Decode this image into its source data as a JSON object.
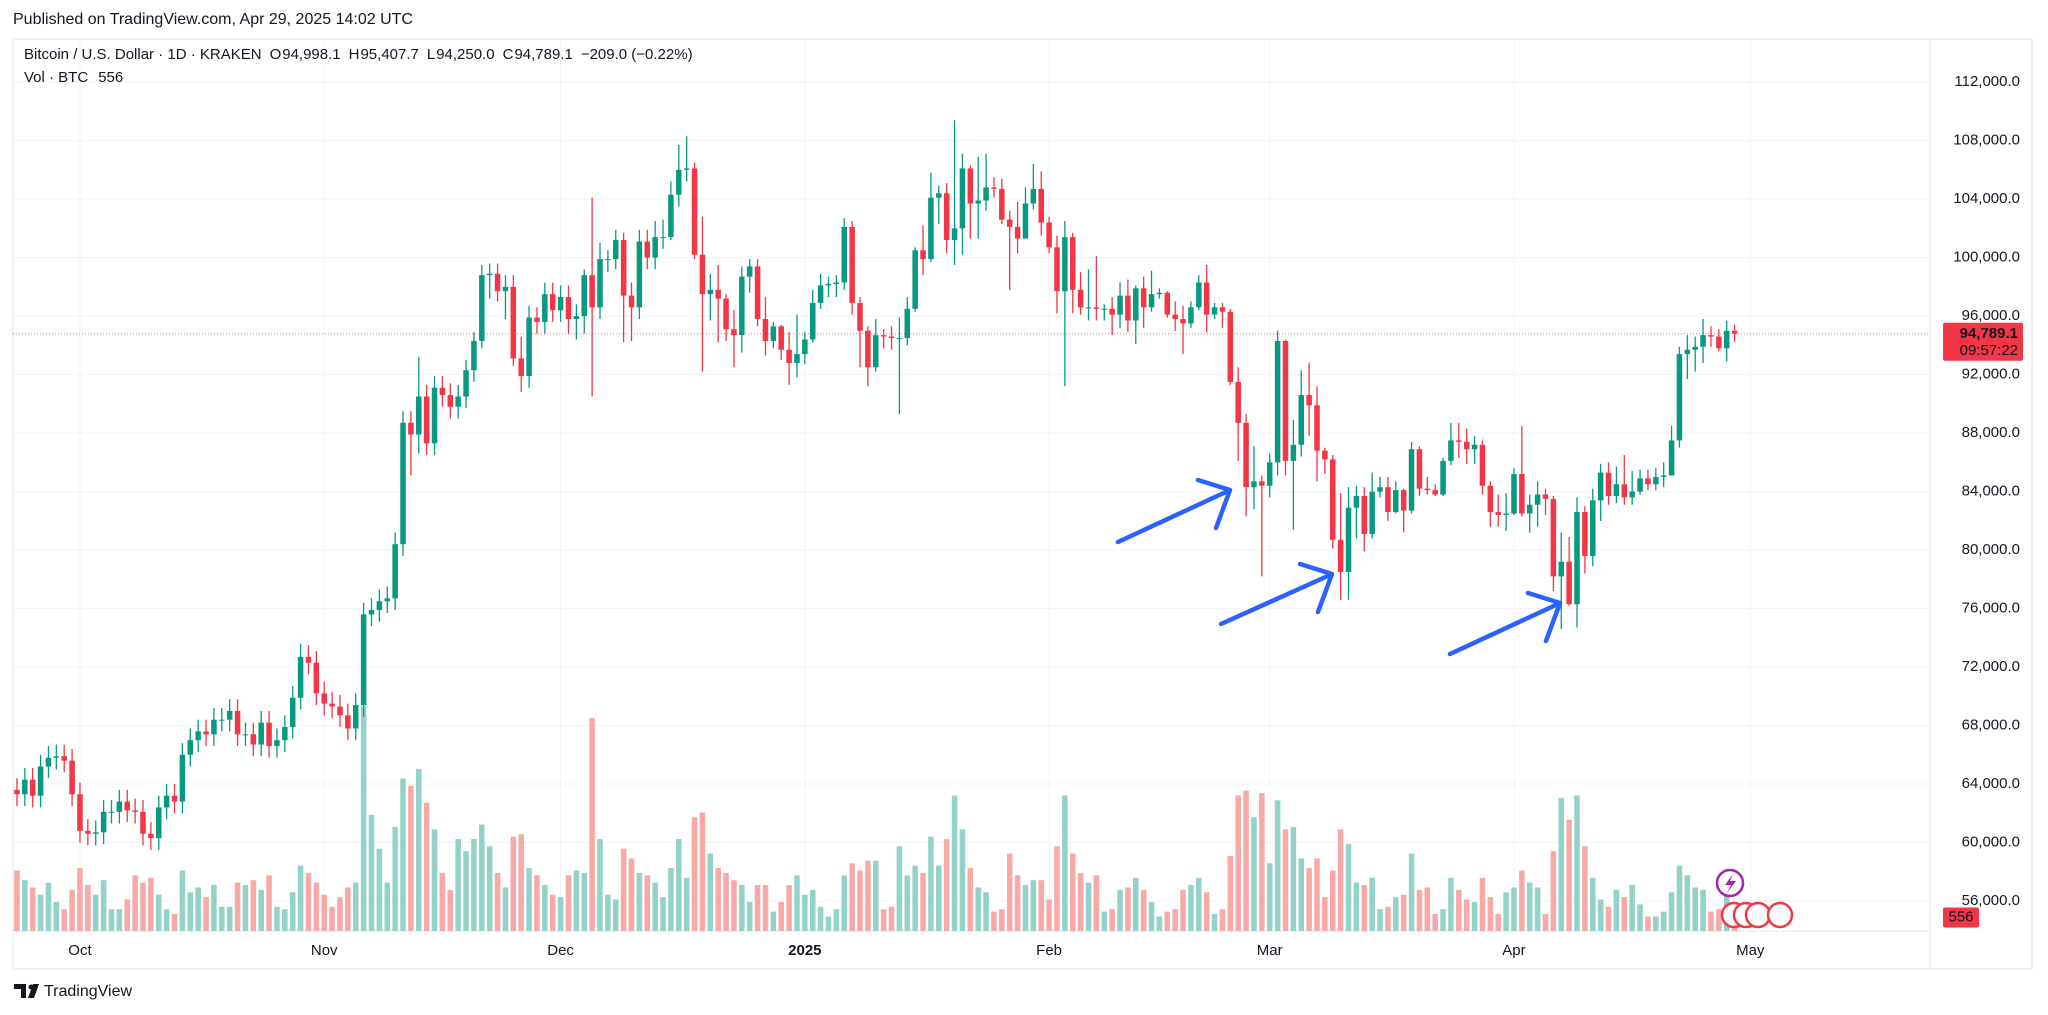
{
  "header": {
    "published": "Published on TradingView.com, Apr 29, 2025 14:02 UTC",
    "brand": "TradingView"
  },
  "chart_data": {
    "type": "candlestick",
    "symbol": "Bitcoin / U.S. Dollar · 1D · KRAKEN",
    "legend_values": [
      {
        "key": "O",
        "label": "94,998.1"
      },
      {
        "key": "H",
        "label": "95,407.7"
      },
      {
        "key": "L",
        "label": "94,250.0"
      },
      {
        "key": "C",
        "label": "94,789.1"
      }
    ],
    "change_label": "−209.0 (−0.22%)",
    "volume_title": "Vol · BTC",
    "volume_label": "556",
    "last_price_label": "94,789.1",
    "countdown": "09:57:22",
    "up_color": "#089981",
    "down_color": "#f23645",
    "up_volume_color": "#92d2c7",
    "down_volume_color": "#f7a9a7",
    "grid": true,
    "xlim": [
      -0.5,
      242.8
    ],
    "xticks": [
      {
        "value": 8,
        "label": "Oct"
      },
      {
        "value": 39,
        "label": "Nov"
      },
      {
        "value": 69,
        "label": "Dec"
      },
      {
        "value": 100,
        "label": "2025"
      },
      {
        "value": 131,
        "label": "Feb"
      },
      {
        "value": 159,
        "label": "Mar"
      },
      {
        "value": 190,
        "label": "Apr"
      },
      {
        "value": 220,
        "label": "May"
      }
    ],
    "ylim": [
      53950,
      114950
    ],
    "yticks": [
      {
        "value": 56000,
        "label": "56,000.0"
      },
      {
        "value": 60000,
        "label": "60,000.0"
      },
      {
        "value": 64000,
        "label": "64,000.0"
      },
      {
        "value": 68000,
        "label": "68,000.0"
      },
      {
        "value": 72000,
        "label": "72,000.0"
      },
      {
        "value": 76000,
        "label": "76,000.0"
      },
      {
        "value": 80000,
        "label": "80,000.0"
      },
      {
        "value": 84000,
        "label": "84,000.0"
      },
      {
        "value": 88000,
        "label": "88,000.0"
      },
      {
        "value": 92000,
        "label": "92,000.0"
      },
      {
        "value": 96000,
        "label": "96,000.0"
      },
      {
        "value": 100000,
        "label": "100,000.0"
      },
      {
        "value": 104000,
        "label": "104,000.0"
      },
      {
        "value": 108000,
        "label": "108,000.0"
      },
      {
        "value": 112000,
        "label": "112,000.0"
      }
    ],
    "open": [
      63600,
      63300,
      64300,
      63200,
      65200,
      65800,
      65900,
      65600,
      63300,
      60800,
      60600,
      60700,
      62100,
      62100,
      62800,
      62200,
      62100,
      60600,
      60300,
      62400,
      63200,
      62800,
      66000,
      67000,
      67600,
      67400,
      68400,
      68400,
      69000,
      67400,
      67400,
      66700,
      68200,
      66600,
      67000,
      67900,
      69900,
      72700,
      72300,
      70200,
      69500,
      69300,
      68700,
      67800,
      69400,
      75600,
      75900,
      76500,
      76700,
      80400,
      88700,
      87900,
      90500,
      87300,
      91100,
      90600,
      89800,
      90500,
      92300,
      94300,
      98800,
      98900,
      97700,
      98000,
      93100,
      91900,
      95900,
      95600,
      97500,
      96400,
      97300,
      95800,
      96000,
      98800,
      96600,
      99900,
      99900,
      101200,
      97400,
      96600,
      101100,
      100000,
      101400,
      101400,
      104300,
      106000,
      106100,
      100200,
      97500,
      97800,
      97200,
      95100,
      94700,
      98700,
      99400,
      95800,
      94300,
      95300,
      93700,
      92800,
      93400,
      94400,
      96900,
      98100,
      98200,
      98300,
      102100,
      96900,
      95000,
      92500,
      94700,
      94600,
      94500,
      94500,
      96500,
      100500,
      99900,
      104100,
      104400,
      101200,
      102000,
      106100,
      103700,
      103900,
      104800,
      104700,
      102600,
      102100,
      101300,
      103700,
      104700,
      102400,
      100700,
      97700,
      101400,
      97800,
      96600,
      96600,
      96500,
      96500,
      96100,
      97400,
      95700,
      97900,
      96600,
      97500,
      97600,
      96100,
      95800,
      95500,
      96600,
      98300,
      96100,
      96600,
      96300,
      91500,
      88700,
      84300,
      84700,
      84400,
      86000,
      94300,
      86100,
      87200,
      90600,
      89900,
      86800,
      86200,
      80700,
      78500,
      82900,
      83700,
      81100,
      84000,
      84300,
      82600,
      84100,
      82700,
      86900,
      84200,
      84100,
      83800,
      86100,
      87500,
      87400,
      86900,
      87200,
      84400,
      82600,
      82400,
      82500,
      85200,
      82500,
      83100,
      83800,
      83500,
      78200,
      79200,
      76300,
      82600,
      79600,
      83400,
      85300,
      83700,
      84500,
      83600,
      84000,
      84900,
      84500,
      85000,
      85100,
      87500,
      93400,
      93700,
      93900,
      94700,
      94600,
      93800,
      94998.1
    ],
    "high": [
      64400,
      65100,
      65100,
      66000,
      66600,
      66700,
      66700,
      66400,
      64100,
      61600,
      61500,
      62900,
      62900,
      63600,
      63600,
      63000,
      62900,
      61400,
      63200,
      64000,
      64000,
      66800,
      67800,
      68400,
      68400,
      69200,
      69200,
      69800,
      69800,
      68200,
      68200,
      69000,
      69000,
      67800,
      68700,
      70700,
      73600,
      73500,
      73100,
      71000,
      70300,
      70100,
      69500,
      70200,
      76400,
      76700,
      77300,
      77500,
      81200,
      89500,
      89500,
      93200,
      91300,
      91900,
      91900,
      91400,
      91300,
      93000,
      94900,
      99500,
      99600,
      99600,
      98800,
      98800,
      94600,
      96700,
      96600,
      98300,
      98300,
      98100,
      98100,
      96800,
      99200,
      104100,
      101000,
      100500,
      101900,
      101700,
      98300,
      101900,
      101900,
      102500,
      102600,
      105200,
      107700,
      108300,
      106500,
      102800,
      98900,
      99500,
      97500,
      96400,
      99400,
      99900,
      99900,
      97300,
      95600,
      95400,
      94900,
      96100,
      94900,
      97800,
      98900,
      98700,
      98800,
      102700,
      102500,
      97300,
      95300,
      95800,
      95100,
      95300,
      95900,
      97300,
      100700,
      102200,
      105800,
      104900,
      105100,
      109400,
      107100,
      106300,
      106900,
      107100,
      105500,
      105400,
      103200,
      103800,
      104800,
      106400,
      105900,
      102800,
      101500,
      102500,
      101700,
      99000,
      99200,
      100100,
      96800,
      97300,
      98300,
      98500,
      98100,
      98700,
      99100,
      97900,
      97700,
      97000,
      96700,
      97000,
      98800,
      99500,
      96900,
      96900,
      96500,
      92500,
      89300,
      87100,
      85100,
      86600,
      95000,
      94400,
      88900,
      92300,
      92800,
      91200,
      87000,
      86500,
      83900,
      84300,
      84400,
      84300,
      85300,
      85000,
      85000,
      84700,
      84200,
      87400,
      87100,
      85000,
      84500,
      86300,
      88700,
      88700,
      88300,
      87800,
      87500,
      84700,
      83800,
      83900,
      85600,
      88500,
      83800,
      84700,
      84200,
      83700,
      81200,
      80900,
      83600,
      83000,
      84200,
      85900,
      86000,
      85700,
      86500,
      85400,
      85500,
      85500,
      85600,
      86000,
      88500,
      93900,
      94700,
      94600,
      95800,
      95300,
      95100,
      95700,
      95407.7
    ],
    "low": [
      62500,
      62500,
      62400,
      62400,
      64400,
      65000,
      64800,
      62500,
      60000,
      59800,
      59800,
      59900,
      61300,
      61300,
      61400,
      61300,
      59800,
      59500,
      59500,
      61600,
      62000,
      62000,
      65200,
      66200,
      66600,
      66600,
      67600,
      67600,
      66600,
      66600,
      65900,
      65900,
      65800,
      65800,
      66200,
      67100,
      69100,
      71500,
      69400,
      68700,
      68500,
      67900,
      67000,
      67000,
      68600,
      74800,
      75100,
      75700,
      75900,
      79600,
      85100,
      86600,
      86500,
      86500,
      89800,
      89000,
      89000,
      89700,
      91500,
      93800,
      97200,
      97000,
      95800,
      92600,
      90800,
      91100,
      94800,
      94800,
      95600,
      95600,
      94800,
      94400,
      94800,
      90500,
      95800,
      99000,
      99200,
      94200,
      94300,
      95800,
      99200,
      99200,
      100600,
      101200,
      103500,
      105200,
      99900,
      92200,
      95700,
      94200,
      94300,
      92500,
      93500,
      97600,
      95300,
      93300,
      93800,
      93000,
      91300,
      91800,
      92700,
      94200,
      96500,
      97300,
      97300,
      97800,
      96100,
      92500,
      91200,
      92200,
      93800,
      93700,
      89300,
      94000,
      96300,
      98800,
      99700,
      102300,
      100300,
      99500,
      100200,
      101300,
      101300,
      103200,
      104100,
      102300,
      97800,
      100300,
      101300,
      103300,
      101500,
      100300,
      96200,
      91200,
      96200,
      96100,
      95700,
      95700,
      95700,
      94700,
      95200,
      94900,
      94100,
      95200,
      96300,
      97200,
      95900,
      95000,
      93400,
      95200,
      96400,
      94900,
      95800,
      95200,
      91300,
      86100,
      82300,
      82800,
      78200,
      83600,
      85100,
      85100,
      81400,
      86400,
      87800,
      84700,
      85200,
      80100,
      76600,
      76600,
      80800,
      79900,
      80800,
      83600,
      82000,
      82500,
      81200,
      82500,
      83700,
      83800,
      83700,
      83700,
      85800,
      86300,
      85900,
      85900,
      83800,
      81600,
      81600,
      81300,
      82400,
      82300,
      81200,
      81600,
      82400,
      77200,
      74600,
      76200,
      74700,
      78400,
      78900,
      82000,
      83100,
      83200,
      83100,
      83100,
      83800,
      84100,
      84100,
      84300,
      85100,
      87000,
      91700,
      92200,
      92800,
      93900,
      93600,
      92900,
      94250
    ],
    "close": [
      63300,
      64300,
      63200,
      65200,
      65800,
      65900,
      65600,
      63300,
      60800,
      60600,
      60700,
      62100,
      62100,
      62800,
      62200,
      62100,
      60600,
      60300,
      62400,
      63200,
      62800,
      66000,
      67000,
      67600,
      67400,
      68400,
      68400,
      69000,
      67400,
      67400,
      66700,
      68200,
      66600,
      67000,
      67900,
      69900,
      72700,
      72300,
      70200,
      69500,
      69300,
      68700,
      67800,
      69400,
      75600,
      75900,
      76500,
      76700,
      80400,
      88700,
      87900,
      90500,
      87300,
      91100,
      90600,
      89800,
      90500,
      92300,
      94300,
      98800,
      98900,
      97700,
      98000,
      93100,
      91900,
      95900,
      95600,
      97500,
      96400,
      97300,
      95800,
      96000,
      98800,
      96600,
      99900,
      99900,
      101200,
      97400,
      96600,
      101100,
      100000,
      101400,
      101400,
      104300,
      106000,
      106100,
      100200,
      97500,
      97800,
      97200,
      95100,
      94700,
      98700,
      99400,
      95800,
      94300,
      95300,
      93700,
      92800,
      93400,
      94400,
      96900,
      98100,
      98200,
      98300,
      102100,
      96900,
      95000,
      92500,
      94700,
      94600,
      94500,
      94500,
      96500,
      100500,
      99900,
      104100,
      104400,
      101200,
      102000,
      106100,
      103700,
      103900,
      104800,
      104700,
      102600,
      102100,
      101300,
      103700,
      104700,
      102400,
      100700,
      97700,
      101400,
      97800,
      96600,
      96600,
      96500,
      96500,
      96100,
      97400,
      95700,
      97900,
      96600,
      97500,
      97600,
      96100,
      95800,
      95500,
      96600,
      98300,
      96100,
      96600,
      96300,
      91500,
      88700,
      84300,
      84700,
      84400,
      86000,
      94300,
      86100,
      87200,
      90600,
      89900,
      86800,
      86200,
      80700,
      78500,
      82900,
      83700,
      81100,
      84000,
      84300,
      82600,
      84100,
      82700,
      86900,
      84200,
      84100,
      83800,
      86100,
      87500,
      87400,
      86900,
      87200,
      84400,
      82600,
      82400,
      82500,
      85200,
      82500,
      83100,
      83800,
      83500,
      78200,
      79200,
      76300,
      82600,
      79600,
      83400,
      85300,
      83700,
      84500,
      83600,
      84000,
      84900,
      84500,
      85000,
      85100,
      87500,
      93400,
      93700,
      93900,
      94700,
      94600,
      93800,
      94998.1,
      94789.1
    ],
    "volume": [
      2500,
      2100,
      1800,
      1500,
      2000,
      1200,
      900,
      1700,
      2600,
      1900,
      1500,
      2100,
      900,
      900,
      1300,
      2300,
      2000,
      2200,
      1500,
      900,
      700,
      2500,
      1600,
      1800,
      1400,
      1900,
      1000,
      1000,
      2000,
      1900,
      2100,
      1700,
      2300,
      1000,
      900,
      1600,
      2700,
      2400,
      2000,
      1500,
      1000,
      1400,
      1800,
      2000,
      9300,
      4800,
      3400,
      2000,
      4300,
      6300,
      6000,
      6700,
      5300,
      4200,
      2400,
      1700,
      3800,
      3300,
      3800,
      4400,
      3500,
      2400,
      1800,
      3900,
      4000,
      2600,
      2300,
      1900,
      1500,
      1400,
      2300,
      2500,
      2400,
      8800,
      3800,
      1500,
      1300,
      3400,
      3000,
      2400,
      2300,
      2000,
      1400,
      2600,
      3800,
      2200,
      4700,
      4900,
      3200,
      2600,
      2400,
      2100,
      1900,
      1200,
      1900,
      1900,
      800,
      1200,
      1900,
      2300,
      1500,
      1700,
      1000,
      600,
      900,
      2300,
      2800,
      2500,
      2900,
      2900,
      900,
      1000,
      3500,
      2300,
      2700,
      2400,
      3900,
      2700,
      3800,
      5600,
      4200,
      2600,
      1800,
      1600,
      800,
      900,
      3200,
      2300,
      1900,
      2100,
      2100,
      1300,
      3500,
      5600,
      3200,
      2400,
      2000,
      2300,
      800,
      900,
      1700,
      1800,
      2200,
      1700,
      1200,
      600,
      800,
      900,
      1700,
      1900,
      2200,
      1600,
      700,
      900,
      3100,
      5600,
      5800,
      4700,
      5700,
      2800,
      5400,
      4200,
      4300,
      3000,
      2600,
      3000,
      1400,
      2500,
      4200,
      3600,
      2000,
      1900,
      2200,
      900,
      1000,
      1400,
      1500,
      3200,
      1700,
      1800,
      700,
      900,
      2200,
      1700,
      1300,
      1200,
      2200,
      1400,
      700,
      1600,
      1800,
      2500,
      2000,
      1800,
      700,
      3300,
      5500,
      4600,
      5600,
      3500,
      2200,
      1300,
      1000,
      1700,
      1400,
      1900,
      1100,
      600,
      600,
      800,
      1600,
      2700,
      2300,
      1800,
      1700,
      800,
      900,
      1500,
      556
    ]
  }
}
